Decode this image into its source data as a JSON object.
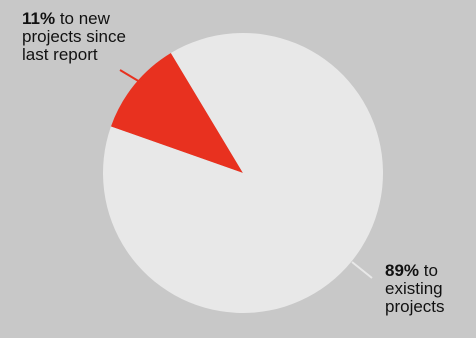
{
  "chart_data": {
    "type": "pie",
    "slices": [
      {
        "label": "to new projects since last report",
        "value": 11,
        "color": "#e8311f"
      },
      {
        "label": "to existing projects",
        "value": 89,
        "color": "#e8e8e8"
      }
    ],
    "legend": "none"
  },
  "annotations": {
    "new_projects": {
      "value": "11%",
      "text": " to new projects since last report"
    },
    "existing_projects": {
      "value": "89%",
      "text": " to existing projects"
    }
  },
  "colors": {
    "background": "#c8c8c8",
    "leader_line_new": "#e8311f",
    "leader_line_existing": "#e8e8e8"
  }
}
